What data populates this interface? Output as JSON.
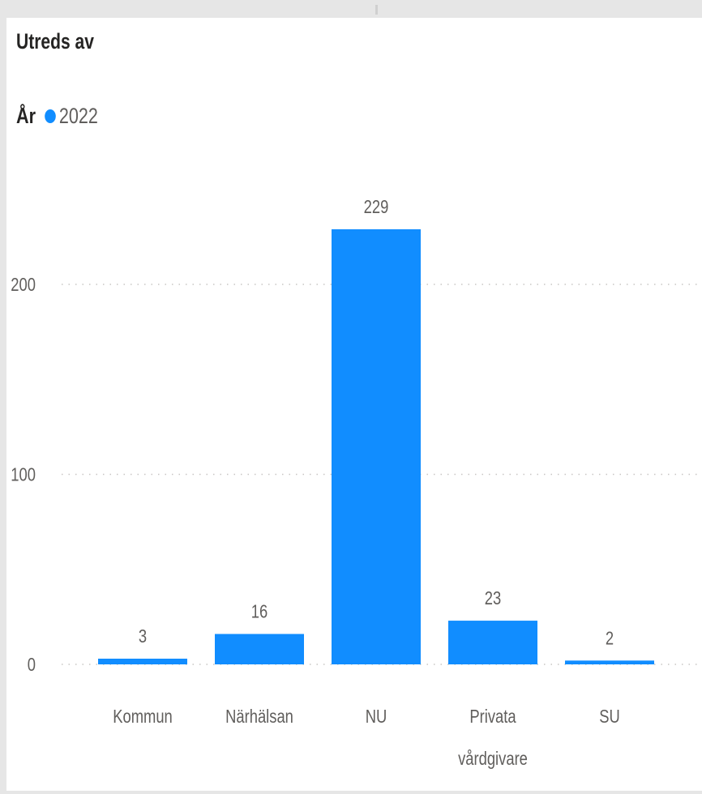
{
  "chart_data": {
    "type": "bar",
    "title": "Utreds av",
    "legend": {
      "title": "År",
      "entries": [
        {
          "name": "2022",
          "color": "#118dff"
        }
      ],
      "placement": "top-left"
    },
    "categories": [
      "Kommun",
      "Närhälsan",
      "NU",
      "Privata vårdgivare",
      "SU"
    ],
    "category_lines": [
      [
        "Kommun"
      ],
      [
        "Närhälsan"
      ],
      [
        "NU"
      ],
      [
        "Privata",
        "vårdgivare"
      ],
      [
        "SU"
      ]
    ],
    "series": [
      {
        "name": "2022",
        "values": [
          3,
          16,
          229,
          23,
          2
        ],
        "color": "#118dff"
      }
    ],
    "data_labels": [
      "3",
      "16",
      "229",
      "23",
      "2"
    ],
    "yticks": [
      0,
      100,
      200
    ],
    "ytick_labels": [
      "0",
      "100",
      "200"
    ],
    "ylim": [
      0,
      250
    ],
    "grid": true,
    "xlabel": "",
    "ylabel": ""
  }
}
